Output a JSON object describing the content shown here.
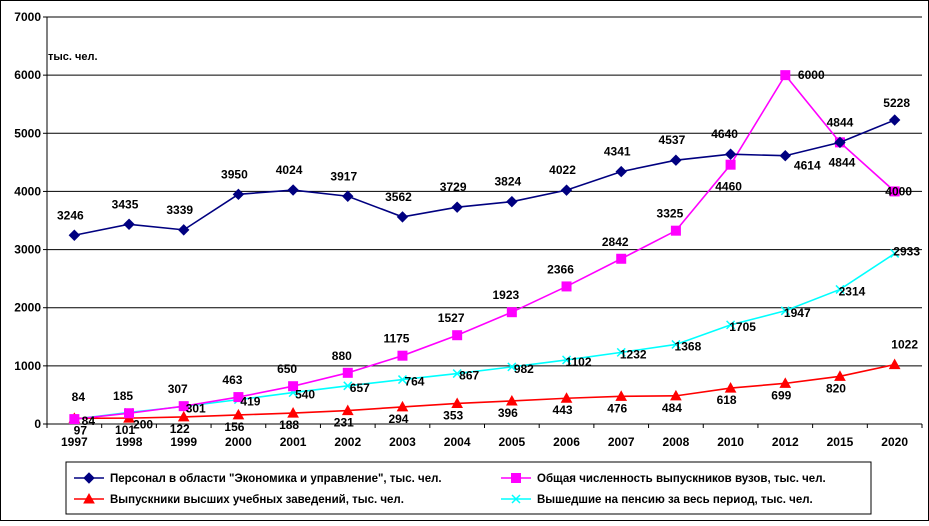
{
  "chart_data": {
    "type": "line",
    "unit_label": "тыс. чел.",
    "categories": [
      "1997",
      "1998",
      "1999",
      "2000",
      "2001",
      "2002",
      "2003",
      "2004",
      "2005",
      "2006",
      "2007",
      "2008",
      "2010",
      "2012",
      "2015",
      "2020"
    ],
    "y_ticks": [
      "0",
      "1000",
      "2000",
      "3000",
      "4000",
      "5000",
      "6000",
      "7000"
    ],
    "ylim": [
      0,
      7000
    ],
    "grid": "horizontal",
    "legend_position": "bottom",
    "series": [
      {
        "name": "Персонал в области \"Экономика и управление\", тыс. чел.",
        "color": "#000080",
        "marker": "diamond",
        "values": [
          3246,
          3435,
          3339,
          3950,
          4024,
          3917,
          3562,
          3729,
          3824,
          4022,
          4341,
          4537,
          4640,
          4614,
          4844,
          5228
        ]
      },
      {
        "name": "Общая численность выпускников вузов, тыс. чел.",
        "color": "#FF00FF",
        "marker": "square",
        "values": [
          84,
          185,
          307,
          463,
          650,
          880,
          1175,
          1527,
          1923,
          2366,
          2842,
          3325,
          4460,
          6000,
          4844,
          4000
        ]
      },
      {
        "name": "Выпускники высших учебных заведений, тыс. чел.",
        "color": "#FF0000",
        "marker": "triangle",
        "values": [
          97,
          101,
          122,
          156,
          188,
          231,
          294,
          353,
          396,
          443,
          476,
          484,
          618,
          699,
          820,
          1022
        ]
      },
      {
        "name": "Вышедшие на пенсию за весь период, тыс. чел.",
        "color": "#00FFFF",
        "marker": "x",
        "values": [
          84,
          200,
          301,
          419,
          540,
          657,
          764,
          867,
          982,
          1102,
          1232,
          1368,
          1705,
          1947,
          2314,
          2933
        ]
      }
    ]
  }
}
